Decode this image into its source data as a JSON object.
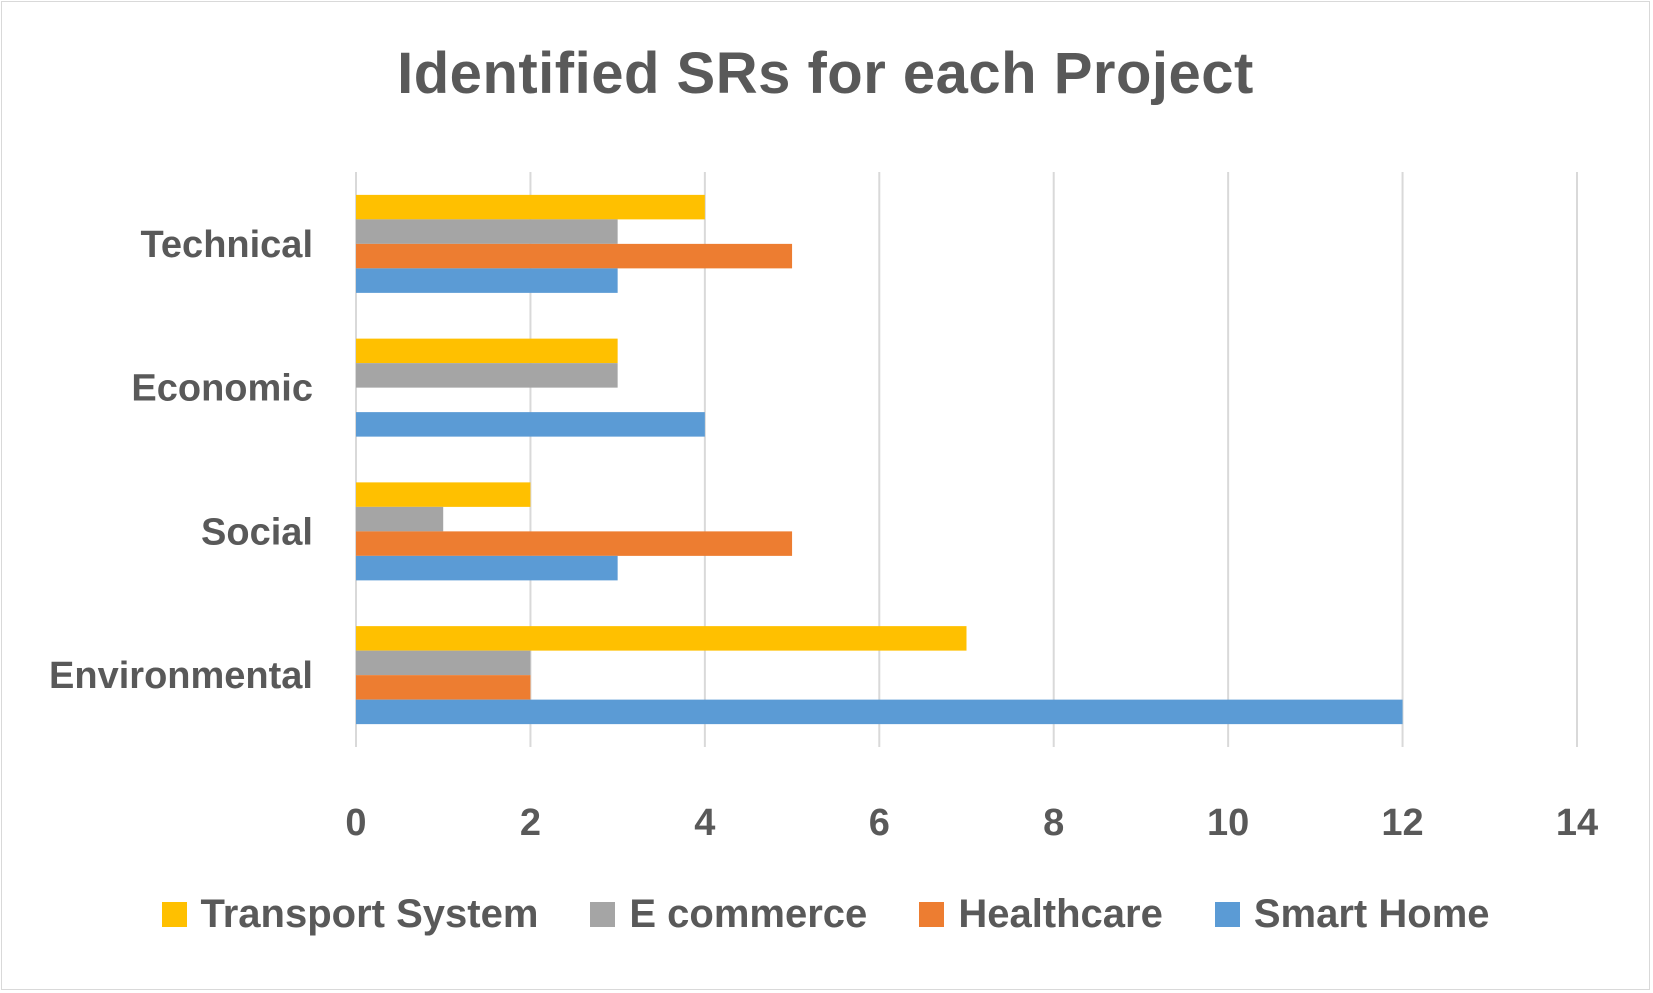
{
  "chart_data": {
    "type": "bar",
    "orientation": "horizontal",
    "title": "Identified SRs for each Project",
    "categories": [
      "Technical",
      "Economic",
      "Social",
      "Environmental"
    ],
    "series": [
      {
        "name": "Transport System",
        "color": "#FFC000",
        "values": [
          4,
          3,
          2,
          7
        ]
      },
      {
        "name": "E commerce",
        "color": "#A5A5A5",
        "values": [
          3,
          3,
          1,
          2
        ]
      },
      {
        "name": "Healthcare",
        "color": "#ED7D31",
        "values": [
          5,
          0,
          5,
          2
        ]
      },
      {
        "name": "Smart Home",
        "color": "#5B9BD5",
        "values": [
          3,
          4,
          3,
          12
        ]
      }
    ],
    "xlim": [
      0,
      14
    ],
    "xticks": [
      "0",
      "2",
      "4",
      "6",
      "8",
      "10",
      "12",
      "14"
    ],
    "grid": true,
    "legend_position": "bottom"
  }
}
